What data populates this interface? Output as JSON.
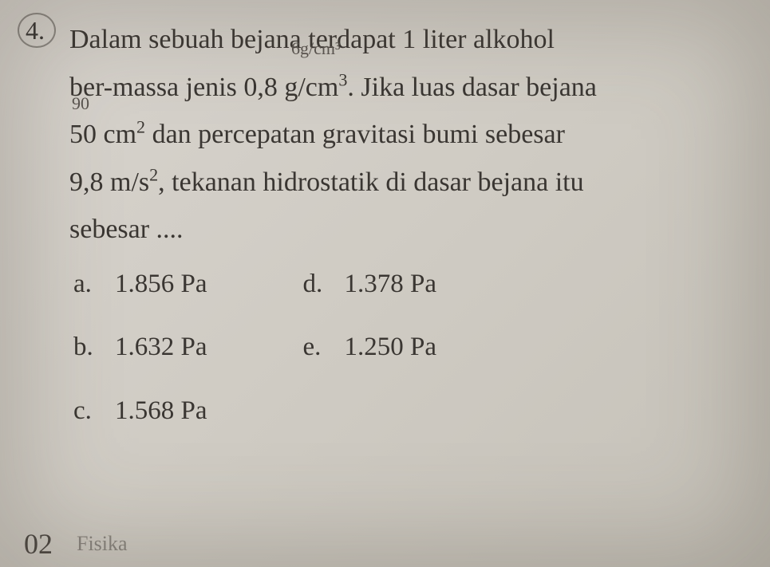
{
  "question": {
    "number": "4.",
    "line1": "Dalam sebuah bejana terdapat 1 liter alkohol",
    "line2_pre": "ber-massa jenis 0,8 g/cm",
    "line2_sup": "3",
    "line2_post": ". Jika luas dasar bejana",
    "line3_pre": "50 cm",
    "line3_sup": "2",
    "line3_post": " dan percepatan gravitasi bumi sebesar",
    "line4_pre": "9,8 m/s",
    "line4_sup": "2",
    "line4_post": ", tekanan hidrostatik di dasar bejana itu",
    "line5": "sebesar ...."
  },
  "handwritten": {
    "annotation1": "6g/cm³",
    "annotation2": "90"
  },
  "options": {
    "left": [
      {
        "letter": "a.",
        "value": "1.856 Pa"
      },
      {
        "letter": "b.",
        "value": "1.632 Pa"
      },
      {
        "letter": "c.",
        "value": "1.568 Pa"
      }
    ],
    "right": [
      {
        "letter": "d.",
        "value": "1.378 Pa"
      },
      {
        "letter": "e.",
        "value": "1.250 Pa"
      }
    ]
  },
  "footer": {
    "page_number": "02",
    "text": "Fisika"
  },
  "colors": {
    "background": "#d0ccc4",
    "text": "#3a3632",
    "handwritten": "#5a5550"
  }
}
